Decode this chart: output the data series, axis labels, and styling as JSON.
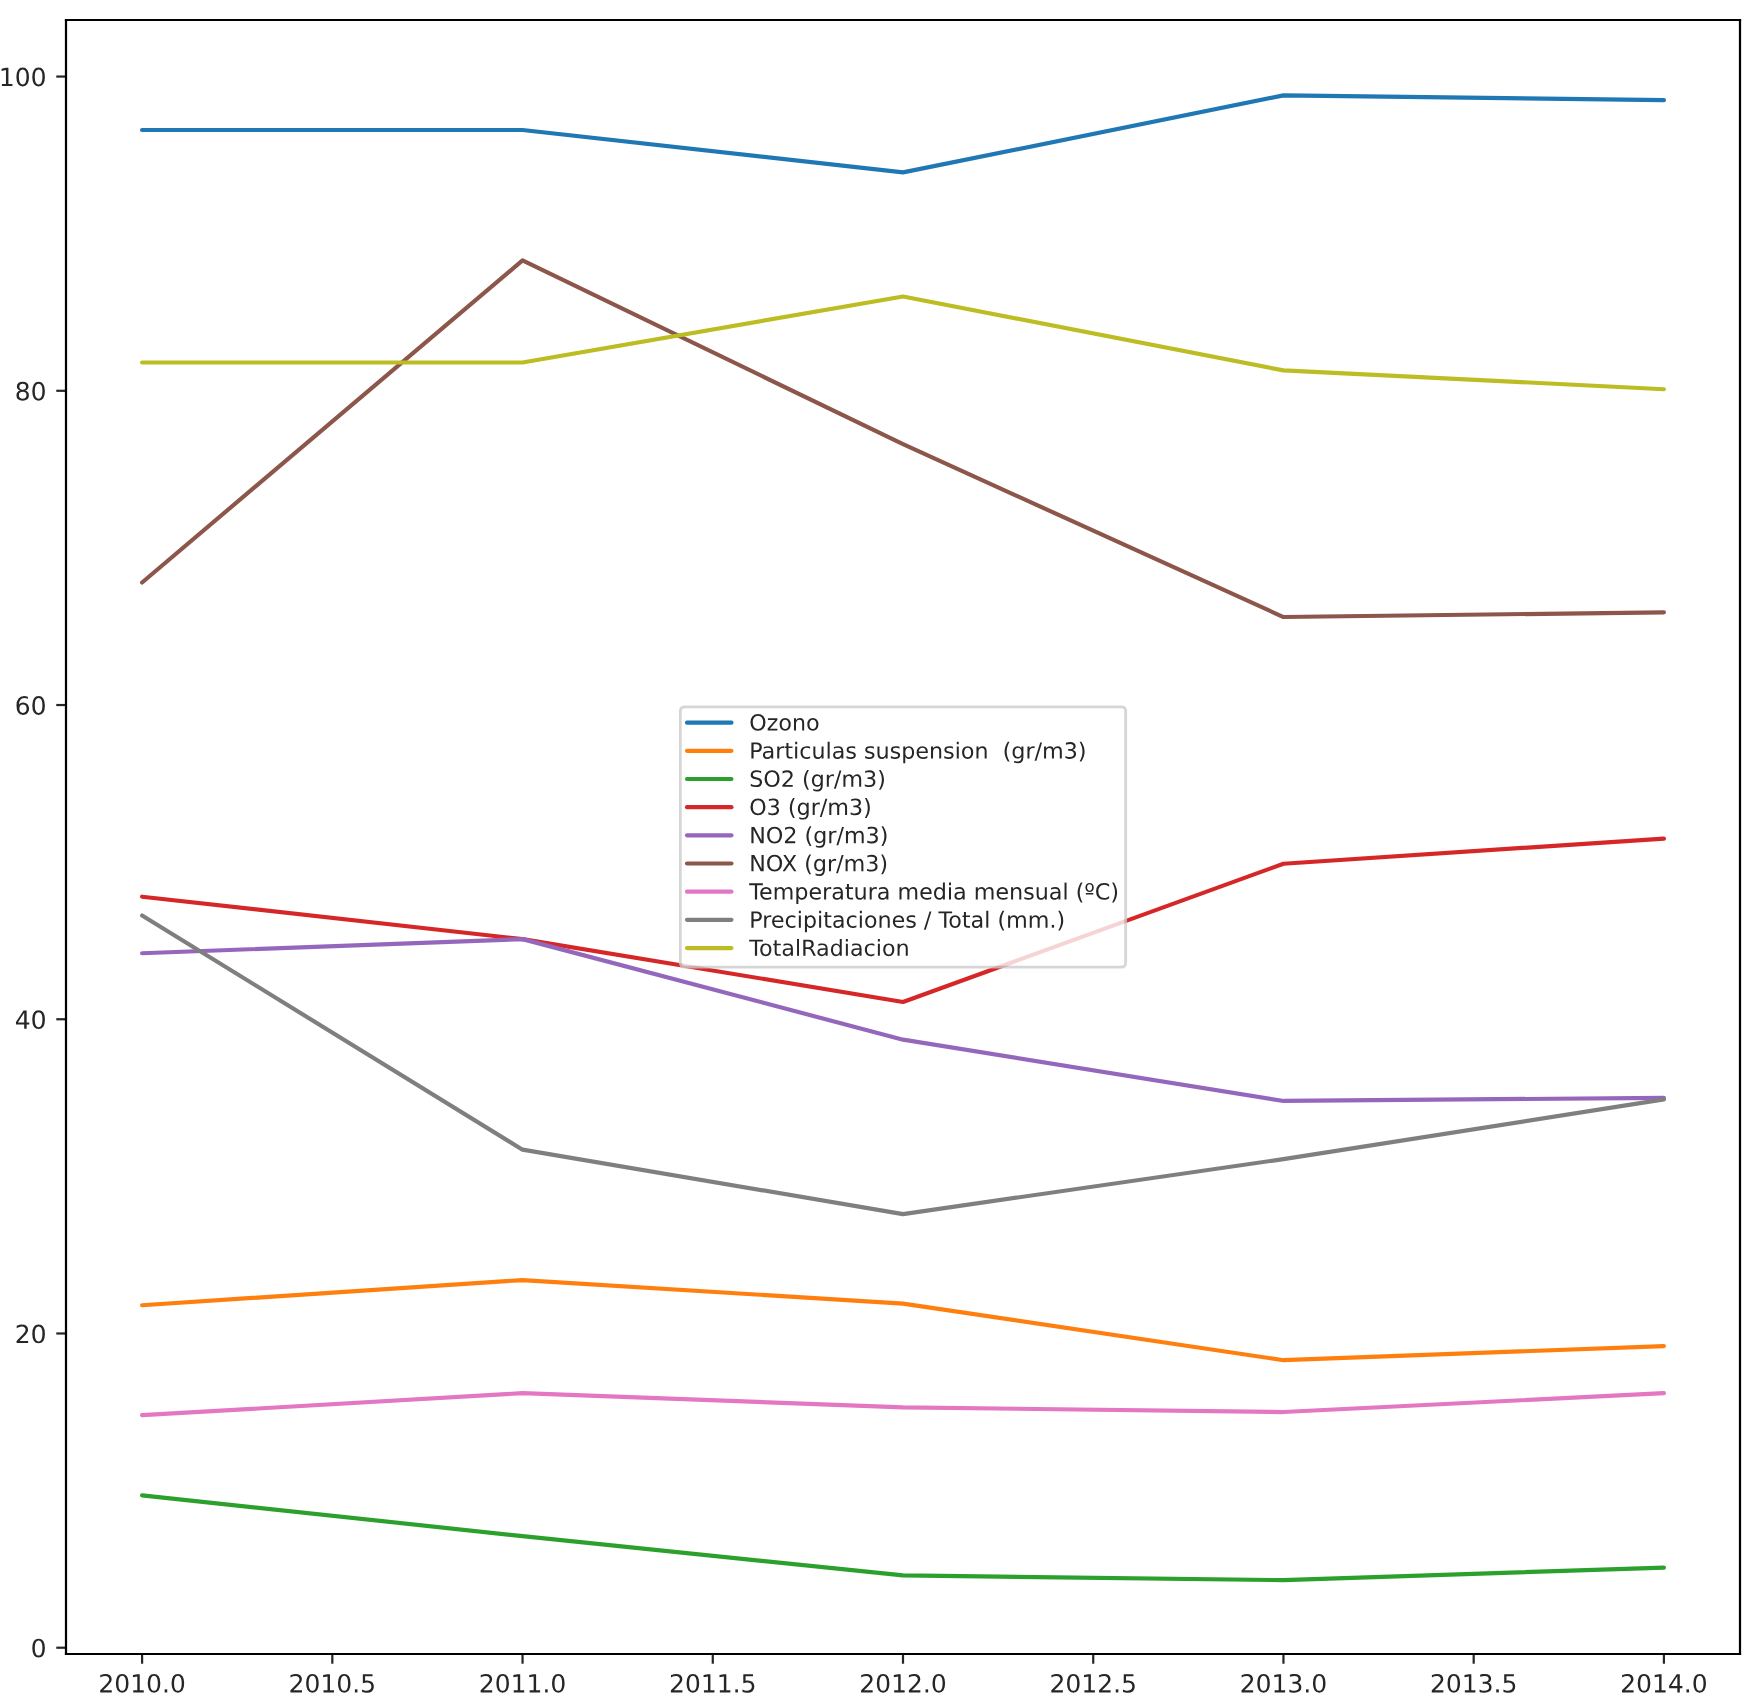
{
  "chart_data": {
    "type": "line",
    "x": [
      2010,
      2011,
      2012,
      2013,
      2014
    ],
    "xlim": [
      2009.8,
      2014.2
    ],
    "ylim": [
      -0.4,
      103.6
    ],
    "xticks": [
      {
        "value": 2010,
        "label": "2010.0"
      },
      {
        "value": 2010.5,
        "label": "2010.5"
      },
      {
        "value": 2011,
        "label": "2011.0"
      },
      {
        "value": 2011.5,
        "label": "2011.5"
      },
      {
        "value": 2012,
        "label": "2012.0"
      },
      {
        "value": 2012.5,
        "label": "2012.5"
      },
      {
        "value": 2013,
        "label": "2013.0"
      },
      {
        "value": 2013.5,
        "label": "2013.5"
      },
      {
        "value": 2014,
        "label": "2014.0"
      }
    ],
    "yticks": [
      0,
      20,
      40,
      60,
      80,
      100
    ],
    "grid": false,
    "legend": "center",
    "marker": "none",
    "line_style": "solid",
    "series": [
      {
        "name": "Ozono",
        "color": "#1f77b4",
        "values": [
          96.6,
          96.6,
          93.9,
          98.8,
          98.5
        ]
      },
      {
        "name": "Particulas suspension  (gr/m3)",
        "color": "#ff7f0e",
        "values": [
          21.8,
          23.4,
          21.9,
          18.3,
          19.2
        ]
      },
      {
        "name": "SO2 (gr/m3)",
        "color": "#2ca02c",
        "values": [
          9.7,
          7.1,
          4.6,
          4.3,
          5.1
        ]
      },
      {
        "name": "O3 (gr/m3)",
        "color": "#d62728",
        "values": [
          47.8,
          45.1,
          41.1,
          49.9,
          51.5
        ]
      },
      {
        "name": "NO2 (gr/m3)",
        "color": "#9467bd",
        "values": [
          44.2,
          45.1,
          38.7,
          34.8,
          35.0
        ]
      },
      {
        "name": "NOX (gr/m3)",
        "color": "#8c564b",
        "values": [
          67.8,
          88.3,
          76.6,
          65.6,
          65.9
        ]
      },
      {
        "name": "Temperatura media mensual (ºC)",
        "color": "#e377c2",
        "values": [
          14.8,
          16.2,
          15.3,
          15.0,
          16.2
        ]
      },
      {
        "name": "Precipitaciones / Total (mm.)",
        "color": "#7f7f7f",
        "values": [
          46.6,
          31.7,
          27.6,
          31.1,
          34.9
        ]
      },
      {
        "name": "TotalRadiacion",
        "color": "#bcbd22",
        "values": [
          81.8,
          81.8,
          86.0,
          81.3,
          80.1
        ]
      }
    ]
  }
}
